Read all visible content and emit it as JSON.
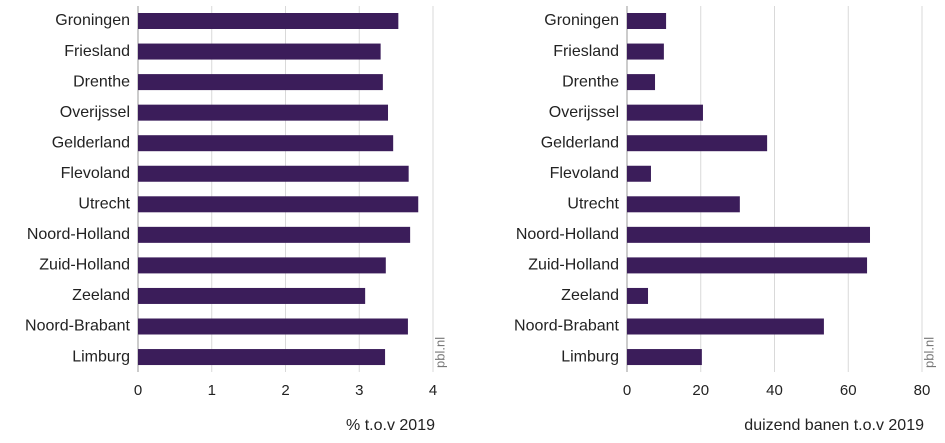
{
  "chart_data": [
    {
      "type": "hbar",
      "xlabel": "% t.o.v 2019",
      "source": "pbl.nl",
      "categories": [
        "Groningen",
        "Friesland",
        "Drenthe",
        "Overijssel",
        "Gelderland",
        "Flevoland",
        "Utrecht",
        "Noord-Holland",
        "Zuid-Holland",
        "Zeeland",
        "Noord-Brabant",
        "Limburg"
      ],
      "values": [
        3.53,
        3.29,
        3.32,
        3.39,
        3.46,
        3.67,
        3.8,
        3.69,
        3.36,
        3.08,
        3.66,
        3.35
      ],
      "color": "#3b1d5a",
      "xlim": [
        0,
        4
      ],
      "xticks": [
        0,
        1,
        2,
        3,
        4
      ],
      "grid": true
    },
    {
      "type": "hbar",
      "xlabel": "duizend banen t.o.v 2019",
      "source": "pbl.nl",
      "categories": [
        "Groningen",
        "Friesland",
        "Drenthe",
        "Overijssel",
        "Gelderland",
        "Flevoland",
        "Utrecht",
        "Noord-Holland",
        "Zuid-Holland",
        "Zeeland",
        "Noord-Brabant",
        "Limburg"
      ],
      "values": [
        10.6,
        10,
        7.6,
        20.6,
        38,
        6.5,
        30.6,
        65.9,
        65.1,
        5.7,
        53.4,
        20.3
      ],
      "color": "#3b1d5a",
      "xlim": [
        0,
        80
      ],
      "xticks": [
        0,
        20,
        40,
        60,
        80
      ],
      "grid": true
    }
  ]
}
